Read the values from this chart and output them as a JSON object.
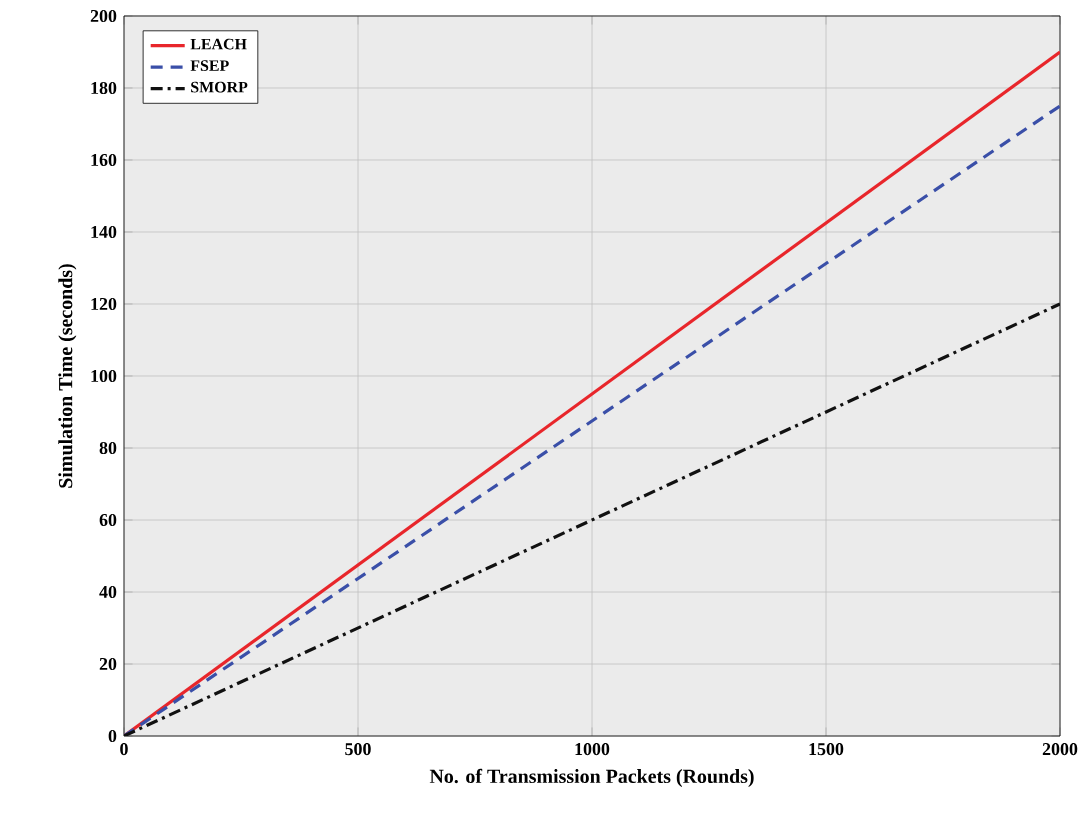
{
  "chart_data": {
    "type": "line",
    "xlabel": "No. of Transmission Packets (Rounds)",
    "ylabel": "Simulation Time (seconds)",
    "x": [
      0,
      2000
    ],
    "series": [
      {
        "name": "LEACH",
        "color": "#e8262b",
        "values": [
          0,
          190
        ],
        "line_style": "solid"
      },
      {
        "name": "FSEP",
        "color": "#3a4fa8",
        "values": [
          0,
          175
        ],
        "line_style": "dashed"
      },
      {
        "name": "SMORP",
        "color": "#111111",
        "values": [
          0,
          120
        ],
        "line_style": "dashdot"
      }
    ],
    "xlim": [
      0,
      2000
    ],
    "ylim": [
      0,
      200
    ],
    "xticks": [
      0,
      500,
      1000,
      1500,
      2000
    ],
    "yticks": [
      0,
      20,
      40,
      60,
      80,
      100,
      120,
      140,
      160,
      180,
      200
    ],
    "grid": true,
    "legend": "top left",
    "marker": "none"
  }
}
